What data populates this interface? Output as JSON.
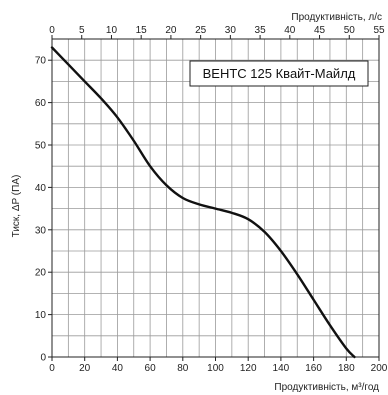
{
  "chart_data": {
    "type": "line",
    "legend_placement": "top-right",
    "grid": true,
    "xlabel_bottom": "Продуктивність, м³/год",
    "xlabel_top": "Продуктивність, л/с",
    "ylabel": "Тиск, ΔP (ПА)",
    "xlim": [
      0,
      200
    ],
    "ylim": [
      0,
      75
    ],
    "xlim_top": [
      0,
      55
    ],
    "xticks_bottom": [
      0,
      20,
      40,
      60,
      80,
      100,
      120,
      140,
      160,
      180,
      200
    ],
    "xticks_top": [
      0,
      5,
      10,
      15,
      20,
      25,
      30,
      35,
      40,
      45,
      50,
      55
    ],
    "yticks": [
      0,
      10,
      20,
      30,
      40,
      50,
      60,
      70
    ],
    "series": [
      {
        "name": "ВЕНТС 125 Квайт-Майлд",
        "color": "#111111",
        "x": [
          0,
          10,
          20,
          30,
          40,
          50,
          60,
          70,
          80,
          90,
          100,
          110,
          120,
          130,
          140,
          150,
          160,
          170,
          180,
          185
        ],
        "y": [
          73,
          69,
          65,
          61,
          56.5,
          51,
          45,
          40.5,
          37.5,
          36,
          35,
          34,
          32.5,
          29.5,
          25,
          19.5,
          13.5,
          7.5,
          2,
          0
        ]
      }
    ]
  }
}
